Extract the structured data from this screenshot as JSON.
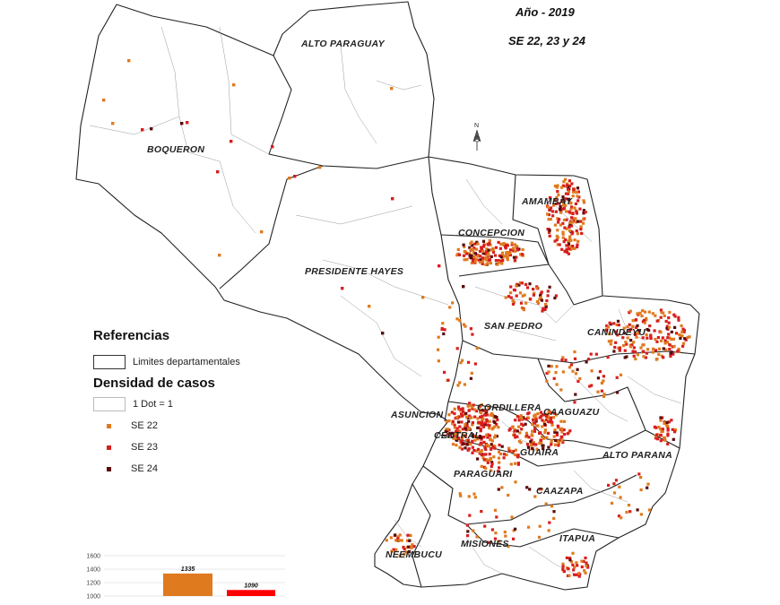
{
  "header": {
    "year": "Año - 2019",
    "weeks": "SE 22, 23 y 24"
  },
  "north_arrow": "N",
  "departments": {
    "alto_paraguay": "ALTO PARAGUAY",
    "boqueron": "BOQUERON",
    "presidente_hayes": "PRESIDENTE HAYES",
    "concepcion": "CONCEPCION",
    "amambay": "AMAMBAY",
    "san_pedro": "SAN PEDRO",
    "canindeyu": "CANINDEYU",
    "asuncion": "ASUNCION",
    "cordillera": "CORDILLERA",
    "central": "CENTRAL",
    "caaguazu": "CAAGUAZU",
    "guaira": "GUAIRA",
    "alto_parana": "ALTO PARANA",
    "paraguari": "PARAGUARI",
    "caazapa": "CAAZAPA",
    "misiones": "MISIONES",
    "itapua": "ITAPUA",
    "neembucu": "NEEMBUCU"
  },
  "legend": {
    "title": "Referencias",
    "boundaries_label": "Limites departamentales",
    "density_title": "Densidad de casos",
    "dot_label": "1 Dot = 1",
    "items": [
      {
        "label": "SE 22",
        "color": "#e07a1f"
      },
      {
        "label": "SE 23",
        "color": "#d81e1e"
      },
      {
        "label": "SE 24",
        "color": "#5a0a0a"
      }
    ]
  },
  "colors": {
    "se22": "#e07a1f",
    "se23": "#d81e1e",
    "se24": "#5a0a0a",
    "bar_se22": "#e07a1f",
    "bar_se23": "#ff0000"
  },
  "chart_data": {
    "type": "bar",
    "categories": [
      "",
      ""
    ],
    "values": [
      1335,
      1090
    ],
    "ylim": [
      1000,
      1600
    ],
    "yticks": [
      1000,
      1200,
      1400,
      1600
    ],
    "ytick_labels": [
      "1000",
      "1200",
      "1400",
      "1600"
    ],
    "data_labels": [
      "1335",
      "1090"
    ]
  }
}
